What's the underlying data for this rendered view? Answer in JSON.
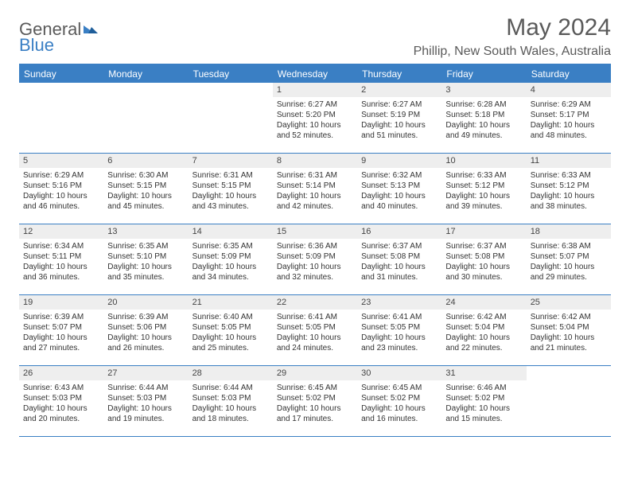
{
  "logo": {
    "general": "General",
    "blue": "Blue"
  },
  "title": "May 2024",
  "location": "Phillip, New South Wales, Australia",
  "colors": {
    "accent": "#3a7fc4",
    "header_bg": "#3a7fc4",
    "header_text": "#ffffff",
    "daynum_bg": "#eeeeee",
    "text": "#333333",
    "title_text": "#5a5a5a"
  },
  "day_names": [
    "Sunday",
    "Monday",
    "Tuesday",
    "Wednesday",
    "Thursday",
    "Friday",
    "Saturday"
  ],
  "weeks": [
    [
      {
        "n": "",
        "sr": "",
        "ss": "",
        "dl": ""
      },
      {
        "n": "",
        "sr": "",
        "ss": "",
        "dl": ""
      },
      {
        "n": "",
        "sr": "",
        "ss": "",
        "dl": ""
      },
      {
        "n": "1",
        "sr": "6:27 AM",
        "ss": "5:20 PM",
        "dl": "10 hours and 52 minutes."
      },
      {
        "n": "2",
        "sr": "6:27 AM",
        "ss": "5:19 PM",
        "dl": "10 hours and 51 minutes."
      },
      {
        "n": "3",
        "sr": "6:28 AM",
        "ss": "5:18 PM",
        "dl": "10 hours and 49 minutes."
      },
      {
        "n": "4",
        "sr": "6:29 AM",
        "ss": "5:17 PM",
        "dl": "10 hours and 48 minutes."
      }
    ],
    [
      {
        "n": "5",
        "sr": "6:29 AM",
        "ss": "5:16 PM",
        "dl": "10 hours and 46 minutes."
      },
      {
        "n": "6",
        "sr": "6:30 AM",
        "ss": "5:15 PM",
        "dl": "10 hours and 45 minutes."
      },
      {
        "n": "7",
        "sr": "6:31 AM",
        "ss": "5:15 PM",
        "dl": "10 hours and 43 minutes."
      },
      {
        "n": "8",
        "sr": "6:31 AM",
        "ss": "5:14 PM",
        "dl": "10 hours and 42 minutes."
      },
      {
        "n": "9",
        "sr": "6:32 AM",
        "ss": "5:13 PM",
        "dl": "10 hours and 40 minutes."
      },
      {
        "n": "10",
        "sr": "6:33 AM",
        "ss": "5:12 PM",
        "dl": "10 hours and 39 minutes."
      },
      {
        "n": "11",
        "sr": "6:33 AM",
        "ss": "5:12 PM",
        "dl": "10 hours and 38 minutes."
      }
    ],
    [
      {
        "n": "12",
        "sr": "6:34 AM",
        "ss": "5:11 PM",
        "dl": "10 hours and 36 minutes."
      },
      {
        "n": "13",
        "sr": "6:35 AM",
        "ss": "5:10 PM",
        "dl": "10 hours and 35 minutes."
      },
      {
        "n": "14",
        "sr": "6:35 AM",
        "ss": "5:09 PM",
        "dl": "10 hours and 34 minutes."
      },
      {
        "n": "15",
        "sr": "6:36 AM",
        "ss": "5:09 PM",
        "dl": "10 hours and 32 minutes."
      },
      {
        "n": "16",
        "sr": "6:37 AM",
        "ss": "5:08 PM",
        "dl": "10 hours and 31 minutes."
      },
      {
        "n": "17",
        "sr": "6:37 AM",
        "ss": "5:08 PM",
        "dl": "10 hours and 30 minutes."
      },
      {
        "n": "18",
        "sr": "6:38 AM",
        "ss": "5:07 PM",
        "dl": "10 hours and 29 minutes."
      }
    ],
    [
      {
        "n": "19",
        "sr": "6:39 AM",
        "ss": "5:07 PM",
        "dl": "10 hours and 27 minutes."
      },
      {
        "n": "20",
        "sr": "6:39 AM",
        "ss": "5:06 PM",
        "dl": "10 hours and 26 minutes."
      },
      {
        "n": "21",
        "sr": "6:40 AM",
        "ss": "5:05 PM",
        "dl": "10 hours and 25 minutes."
      },
      {
        "n": "22",
        "sr": "6:41 AM",
        "ss": "5:05 PM",
        "dl": "10 hours and 24 minutes."
      },
      {
        "n": "23",
        "sr": "6:41 AM",
        "ss": "5:05 PM",
        "dl": "10 hours and 23 minutes."
      },
      {
        "n": "24",
        "sr": "6:42 AM",
        "ss": "5:04 PM",
        "dl": "10 hours and 22 minutes."
      },
      {
        "n": "25",
        "sr": "6:42 AM",
        "ss": "5:04 PM",
        "dl": "10 hours and 21 minutes."
      }
    ],
    [
      {
        "n": "26",
        "sr": "6:43 AM",
        "ss": "5:03 PM",
        "dl": "10 hours and 20 minutes."
      },
      {
        "n": "27",
        "sr": "6:44 AM",
        "ss": "5:03 PM",
        "dl": "10 hours and 19 minutes."
      },
      {
        "n": "28",
        "sr": "6:44 AM",
        "ss": "5:03 PM",
        "dl": "10 hours and 18 minutes."
      },
      {
        "n": "29",
        "sr": "6:45 AM",
        "ss": "5:02 PM",
        "dl": "10 hours and 17 minutes."
      },
      {
        "n": "30",
        "sr": "6:45 AM",
        "ss": "5:02 PM",
        "dl": "10 hours and 16 minutes."
      },
      {
        "n": "31",
        "sr": "6:46 AM",
        "ss": "5:02 PM",
        "dl": "10 hours and 15 minutes."
      },
      {
        "n": "",
        "sr": "",
        "ss": "",
        "dl": ""
      }
    ]
  ],
  "labels": {
    "sunrise": "Sunrise: ",
    "sunset": "Sunset: ",
    "daylight": "Daylight: "
  }
}
